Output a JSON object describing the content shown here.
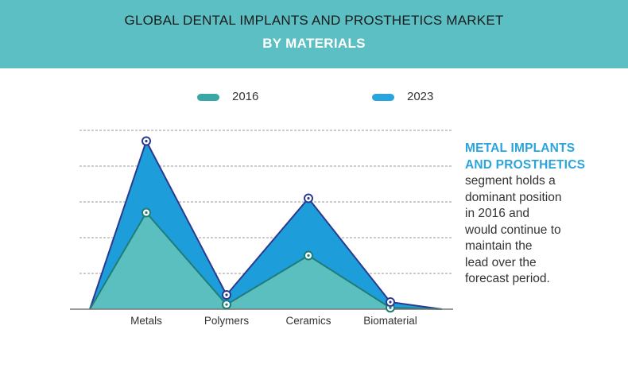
{
  "title": {
    "line1": "GLOBAL DENTAL IMPLANTS AND PROSTHETICS MARKET",
    "line2": "BY MATERIALS"
  },
  "legend": [
    {
      "label": "2016",
      "color": "#3aa6a6"
    },
    {
      "label": "2023",
      "color": "#2aa4dc"
    }
  ],
  "annotation": {
    "title_line1": "METAL IMPLANTS",
    "title_line2": "AND PROSTHETICS",
    "body": [
      "segment holds a",
      "dominant position",
      "in 2016 and",
      "would continue to",
      "maintain the",
      "lead over the",
      "forecast period."
    ]
  },
  "chart_data": {
    "type": "area",
    "categories": [
      "Metals",
      "Polymers",
      "Ceramics",
      "Biomaterial"
    ],
    "series": [
      {
        "name": "2016",
        "values": [
          2.7,
          0.13,
          1.5,
          0.04
        ],
        "fill": "#5bbfbf",
        "stroke": "#1f7d77"
      },
      {
        "name": "2023",
        "values": [
          4.7,
          0.4,
          3.1,
          0.2
        ],
        "fill": "#1e9ddb",
        "stroke": "#2b3a8f"
      }
    ],
    "title": "",
    "xlabel": "",
    "ylabel": "",
    "ylim": [
      0,
      5
    ],
    "grid": true,
    "legend_position": "top"
  }
}
